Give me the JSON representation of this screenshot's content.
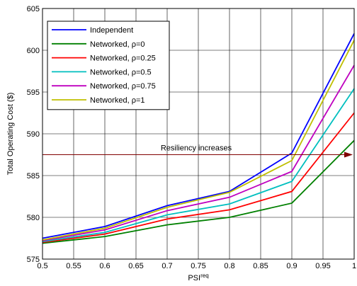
{
  "chart_data": {
    "type": "line",
    "xlabel": "PSI",
    "xlabel_sup": "req",
    "ylabel": "Total Operating Cost ($)",
    "xlim": [
      0.5,
      1.0
    ],
    "ylim": [
      575,
      605
    ],
    "x_ticks": [
      "0.5",
      "0.55",
      "0.6",
      "0.65",
      "0.7",
      "0.75",
      "0.8",
      "0.85",
      "0.9",
      "0.95",
      "1"
    ],
    "y_ticks": [
      "575",
      "580",
      "585",
      "590",
      "595",
      "600",
      "605"
    ],
    "grid": true,
    "legend_position": "top-left",
    "x": [
      0.5,
      0.6,
      0.7,
      0.8,
      0.9,
      1.0
    ],
    "series": [
      {
        "name": "Independent",
        "color": "#0000ff",
        "values": [
          577.5,
          578.9,
          581.4,
          583.1,
          587.7,
          602.0
        ]
      },
      {
        "name": "Networked, ρ=0",
        "color": "#008000",
        "values": [
          576.9,
          577.7,
          579.1,
          580.0,
          581.7,
          589.2
        ]
      },
      {
        "name": "Networked, ρ=0.25",
        "color": "#ff0000",
        "values": [
          577.0,
          578.0,
          579.8,
          580.9,
          583.1,
          592.5
        ]
      },
      {
        "name": "Networked, ρ=0.5",
        "color": "#00bfbf",
        "values": [
          577.1,
          578.2,
          580.3,
          581.6,
          584.3,
          595.4
        ]
      },
      {
        "name": "Networked, ρ=0.75",
        "color": "#bf00bf",
        "values": [
          577.2,
          578.5,
          580.8,
          582.4,
          585.5,
          598.2
        ]
      },
      {
        "name": "Networked, ρ=1",
        "color": "#bfbf00",
        "values": [
          577.3,
          578.7,
          581.2,
          583.0,
          586.8,
          601.2
        ]
      }
    ],
    "annotation": {
      "text": "Resiliency increases",
      "y": 587.5,
      "x_start": 0.5,
      "x_end": 1.0,
      "color": "#800000"
    }
  }
}
